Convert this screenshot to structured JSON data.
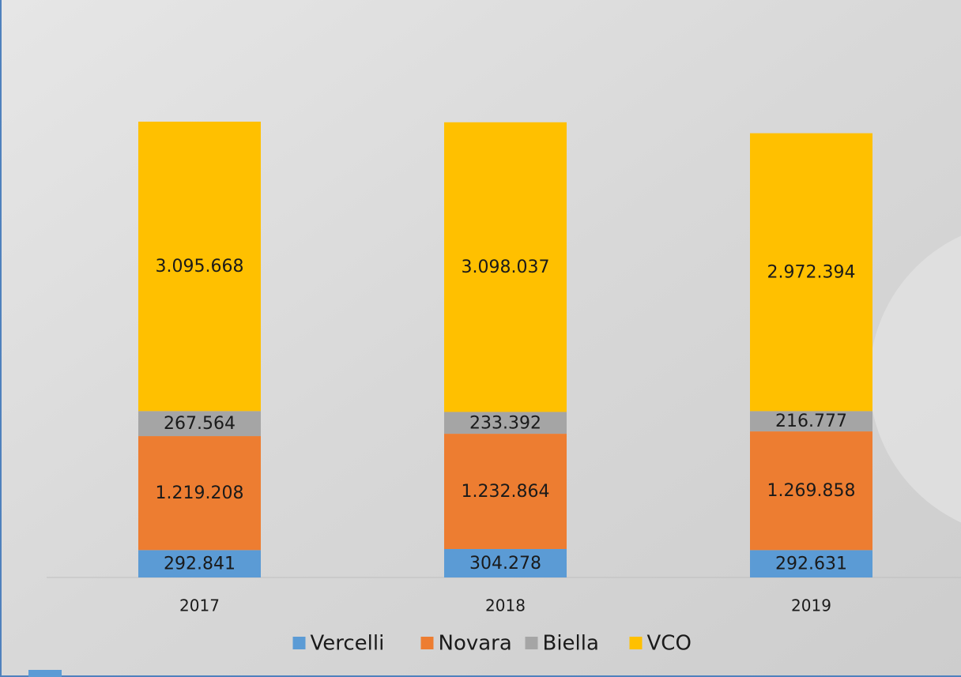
{
  "chart_data": {
    "type": "stacked-bar",
    "categories": [
      "2017",
      "2018",
      "2019"
    ],
    "series": [
      {
        "name": "Vercelli",
        "color": "#5b9bd5",
        "values": [
          292841,
          304278,
          292631
        ],
        "value_labels": [
          "292.841",
          "304.278",
          "292.631"
        ]
      },
      {
        "name": "Novara",
        "color": "#ed7d31",
        "values": [
          1219208,
          1232864,
          1269858
        ],
        "value_labels": [
          "1.219.208",
          "1.232.864",
          "1.269.858"
        ]
      },
      {
        "name": "Biella",
        "color": "#a5a5a5",
        "values": [
          267564,
          233392,
          216777
        ],
        "value_labels": [
          "267.564",
          "233.392",
          "216.777"
        ]
      },
      {
        "name": "VCO",
        "color": "#ffc000",
        "values": [
          3095668,
          3098037,
          2972394
        ],
        "value_labels": [
          "3.095.668",
          "3.098.037",
          "2.972.394"
        ]
      }
    ],
    "legend": "bottom"
  }
}
